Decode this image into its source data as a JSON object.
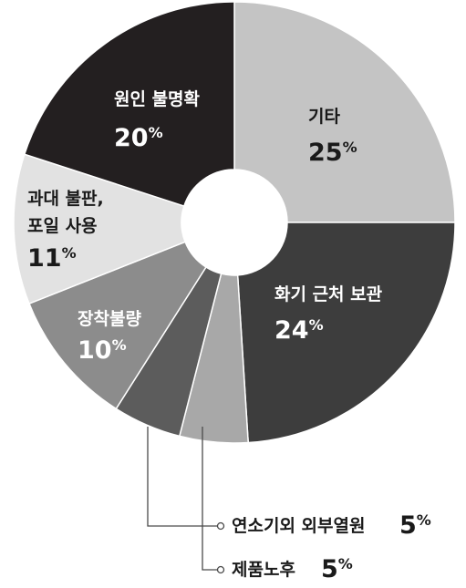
{
  "chart_data": {
    "type": "pie",
    "donut": true,
    "slices": [
      {
        "label": "기타",
        "value": 25,
        "color": "#c4c4c4",
        "text_color": "#1a1a1a"
      },
      {
        "label": "화기 근처 보관",
        "value": 24,
        "color": "#3d3d3d",
        "text_color": "#ffffff"
      },
      {
        "label": "제품노후",
        "value": 5,
        "color": "#a8a8a8",
        "text_color": "#1a1a1a"
      },
      {
        "label": "연소기외 외부열원",
        "value": 5,
        "color": "#5c5c5c",
        "text_color": "#ffffff"
      },
      {
        "label": "장착불량",
        "value": 10,
        "color": "#8c8c8c",
        "text_color": "#ffffff"
      },
      {
        "label": "과대 불판, 포일 사용",
        "value": 11,
        "color": "#e2e2e2",
        "text_color": "#1a1a1a"
      },
      {
        "label": "원인 불명확",
        "value": 20,
        "color": "#231f20",
        "text_color": "#ffffff"
      }
    ],
    "label_lines": {
      "기타": [
        "기타"
      ],
      "화기 근처 보관": [
        "화기 근처 보관"
      ],
      "장착불량": [
        "장착불량"
      ],
      "과대 불판, 포일 사용": [
        "과대 불판,",
        "포일 사용"
      ],
      "원인 불명확": [
        "원인 불명확"
      ]
    },
    "callouts": [
      {
        "label": "연소기외 외부열원",
        "value": 5
      },
      {
        "label": "제품노후",
        "value": 5
      }
    ],
    "percent_sign": "%"
  }
}
